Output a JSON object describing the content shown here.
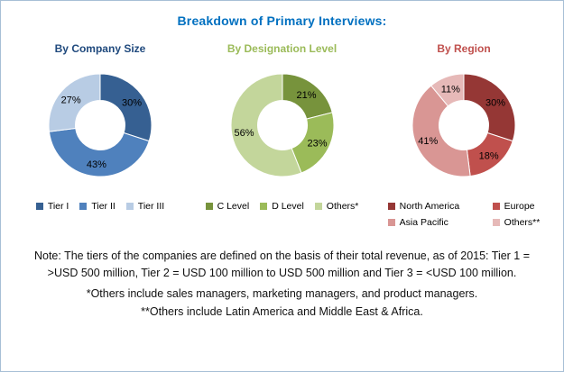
{
  "header": {
    "title": "Breakdown of Primary Interviews:",
    "color": "#0070C0"
  },
  "chart_data": [
    {
      "type": "pie",
      "subtype": "donut",
      "title": "By Company Size",
      "title_color": "#1F497D",
      "labels": [
        "Tier I",
        "Tier II",
        "Tier III"
      ],
      "values": [
        30,
        43,
        27
      ],
      "value_labels": [
        "30%",
        "43%",
        "27%"
      ],
      "colors": [
        "#366092",
        "#4F81BD",
        "#B8CCE4"
      ],
      "legend_position": "bottom",
      "legend_layout": "row",
      "start_angle_deg": 0,
      "direction": "clockwise"
    },
    {
      "type": "pie",
      "subtype": "donut",
      "title": "By Designation Level",
      "title_color": "#9BBB59",
      "labels": [
        "C Level",
        "D Level",
        "Others*"
      ],
      "values": [
        21,
        23,
        56
      ],
      "value_labels": [
        "21%",
        "23%",
        "56%"
      ],
      "colors": [
        "#77933C",
        "#9BBB59",
        "#C3D69B"
      ],
      "legend_position": "bottom",
      "legend_layout": "row",
      "start_angle_deg": 0,
      "direction": "clockwise"
    },
    {
      "type": "pie",
      "subtype": "donut",
      "title": "By Region",
      "title_color": "#C0504D",
      "labels": [
        "North America",
        "Europe",
        "Asia Pacific",
        "Others**"
      ],
      "values": [
        30,
        18,
        41,
        11
      ],
      "value_labels": [
        "30%",
        "18%",
        "41%",
        "11%"
      ],
      "colors": [
        "#953735",
        "#C0504D",
        "#D99694",
        "#E6B9B8"
      ],
      "legend_position": "bottom",
      "legend_layout": "grid",
      "start_angle_deg": 0,
      "direction": "clockwise"
    }
  ],
  "notes": [
    "Note: The tiers of the companies are defined on the basis of their total revenue, as of 2015: Tier 1 = >USD 500 million, Tier 2 = USD 100 million to USD 500 million and Tier 3 = <USD 100 million.",
    "*Others include sales managers, marketing managers, and product managers.",
    "**Others include Latin America and Middle East & Africa."
  ]
}
